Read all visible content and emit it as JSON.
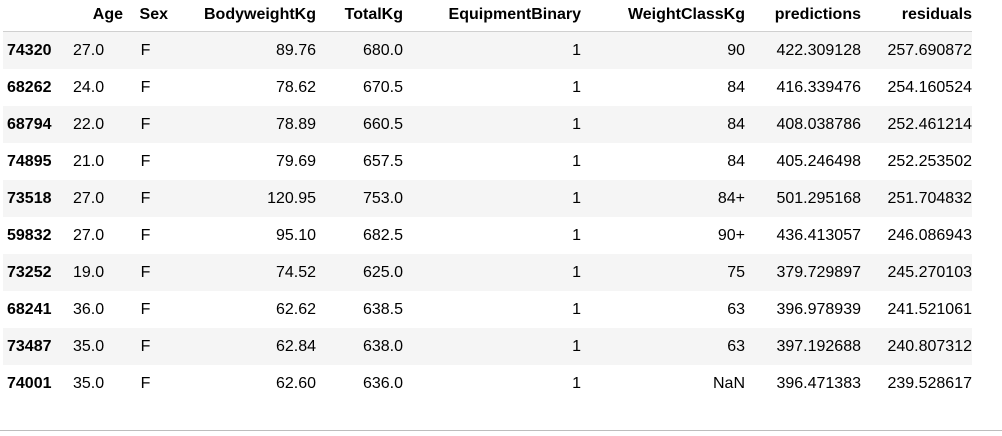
{
  "table": {
    "columns": {
      "index": "",
      "age": "Age",
      "sex": "Sex",
      "bodyweight": "BodyweightKg",
      "total": "TotalKg",
      "equipment": "EquipmentBinary",
      "weightclass": "WeightClassKg",
      "predictions": "predictions",
      "residuals": "residuals"
    },
    "rows": [
      {
        "index": "74320",
        "age": "27.0",
        "sex": "F",
        "bodyweight": "89.76",
        "total": "680.0",
        "equipment": "1",
        "weightclass": "90",
        "predictions": "422.309128",
        "residuals": "257.690872"
      },
      {
        "index": "68262",
        "age": "24.0",
        "sex": "F",
        "bodyweight": "78.62",
        "total": "670.5",
        "equipment": "1",
        "weightclass": "84",
        "predictions": "416.339476",
        "residuals": "254.160524"
      },
      {
        "index": "68794",
        "age": "22.0",
        "sex": "F",
        "bodyweight": "78.89",
        "total": "660.5",
        "equipment": "1",
        "weightclass": "84",
        "predictions": "408.038786",
        "residuals": "252.461214"
      },
      {
        "index": "74895",
        "age": "21.0",
        "sex": "F",
        "bodyweight": "79.69",
        "total": "657.5",
        "equipment": "1",
        "weightclass": "84",
        "predictions": "405.246498",
        "residuals": "252.253502"
      },
      {
        "index": "73518",
        "age": "27.0",
        "sex": "F",
        "bodyweight": "120.95",
        "total": "753.0",
        "equipment": "1",
        "weightclass": "84+",
        "predictions": "501.295168",
        "residuals": "251.704832"
      },
      {
        "index": "59832",
        "age": "27.0",
        "sex": "F",
        "bodyweight": "95.10",
        "total": "682.5",
        "equipment": "1",
        "weightclass": "90+",
        "predictions": "436.413057",
        "residuals": "246.086943"
      },
      {
        "index": "73252",
        "age": "19.0",
        "sex": "F",
        "bodyweight": "74.52",
        "total": "625.0",
        "equipment": "1",
        "weightclass": "75",
        "predictions": "379.729897",
        "residuals": "245.270103"
      },
      {
        "index": "68241",
        "age": "36.0",
        "sex": "F",
        "bodyweight": "62.62",
        "total": "638.5",
        "equipment": "1",
        "weightclass": "63",
        "predictions": "396.978939",
        "residuals": "241.521061"
      },
      {
        "index": "73487",
        "age": "35.0",
        "sex": "F",
        "bodyweight": "62.84",
        "total": "638.0",
        "equipment": "1",
        "weightclass": "63",
        "predictions": "397.192688",
        "residuals": "240.807312"
      },
      {
        "index": "74001",
        "age": "35.0",
        "sex": "F",
        "bodyweight": "62.60",
        "total": "636.0",
        "equipment": "1",
        "weightclass": "NaN",
        "predictions": "396.471383",
        "residuals": "239.528617"
      }
    ]
  }
}
